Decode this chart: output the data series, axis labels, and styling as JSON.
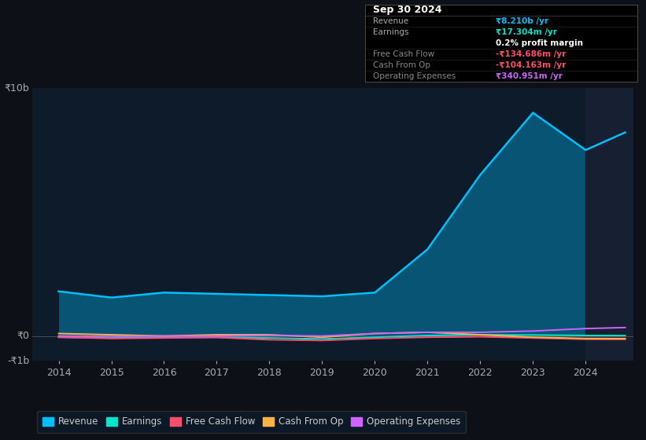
{
  "background_color": "#0d1117",
  "plot_bg_color": "#0d1b2a",
  "years": [
    2014,
    2015,
    2016,
    2017,
    2018,
    2019,
    2020,
    2021,
    2022,
    2023,
    2024,
    2024.75
  ],
  "revenue": [
    1.8,
    1.55,
    1.75,
    1.7,
    1.65,
    1.6,
    1.75,
    3.5,
    6.5,
    9.0,
    7.5,
    8.21
  ],
  "earnings": [
    -0.05,
    -0.08,
    -0.05,
    -0.05,
    -0.08,
    -0.12,
    -0.05,
    0.02,
    0.05,
    0.04,
    0.02,
    0.017
  ],
  "free_cash_flow": [
    -0.05,
    -0.1,
    -0.08,
    -0.06,
    -0.15,
    -0.18,
    -0.1,
    -0.05,
    -0.03,
    -0.08,
    -0.13,
    -0.135
  ],
  "cash_from_op": [
    0.1,
    0.05,
    0.0,
    0.05,
    0.05,
    -0.05,
    0.1,
    0.15,
    0.05,
    -0.05,
    -0.1,
    -0.104
  ],
  "operating_expenses": [
    0.0,
    -0.02,
    0.0,
    0.0,
    0.02,
    0.0,
    0.1,
    0.15,
    0.15,
    0.2,
    0.3,
    0.341
  ],
  "revenue_color": "#00bfff",
  "earnings_color": "#00e5cc",
  "free_cash_flow_color": "#ff4d6d",
  "cash_from_op_color": "#ffb347",
  "operating_expenses_color": "#cc66ff",
  "ylim": [
    -1.0,
    10.0
  ],
  "ytick_labels": [
    "₹10b",
    "₹0",
    "-₹1b"
  ],
  "ytick_values": [
    10.0,
    0.0,
    -1.0
  ],
  "xlim": [
    2013.5,
    2024.9
  ],
  "xtick_years": [
    2014,
    2015,
    2016,
    2017,
    2018,
    2019,
    2020,
    2021,
    2022,
    2023,
    2024
  ],
  "shade_start": 2024.0,
  "shade_end": 2024.9,
  "shade_color": "#162032",
  "info_box": {
    "title": "Sep 30 2024",
    "rows": [
      {
        "label": "Revenue",
        "value": "₹8.210b /yr",
        "value_color": "#00bfff",
        "label_color": "#aaaaaa",
        "divider": true
      },
      {
        "label": "Earnings",
        "value": "₹17.304m /yr",
        "value_color": "#00e5cc",
        "label_color": "#aaaaaa",
        "divider": false
      },
      {
        "label": "",
        "value": "0.2% profit margin",
        "value_color": "#ffffff",
        "label_color": "#aaaaaa",
        "divider": true
      },
      {
        "label": "Free Cash Flow",
        "value": "-₹134.686m /yr",
        "value_color": "#ff4d6d",
        "label_color": "#888888",
        "divider": true
      },
      {
        "label": "Cash From Op",
        "value": "-₹104.163m /yr",
        "value_color": "#ff4d6d",
        "label_color": "#888888",
        "divider": true
      },
      {
        "label": "Operating Expenses",
        "value": "₹340.951m /yr",
        "value_color": "#cc66ff",
        "label_color": "#888888",
        "divider": false
      }
    ]
  },
  "legend_items": [
    {
      "label": "Revenue",
      "color": "#00bfff"
    },
    {
      "label": "Earnings",
      "color": "#00e5cc"
    },
    {
      "label": "Free Cash Flow",
      "color": "#ff4d6d"
    },
    {
      "label": "Cash From Op",
      "color": "#ffb347"
    },
    {
      "label": "Operating Expenses",
      "color": "#cc66ff"
    }
  ]
}
